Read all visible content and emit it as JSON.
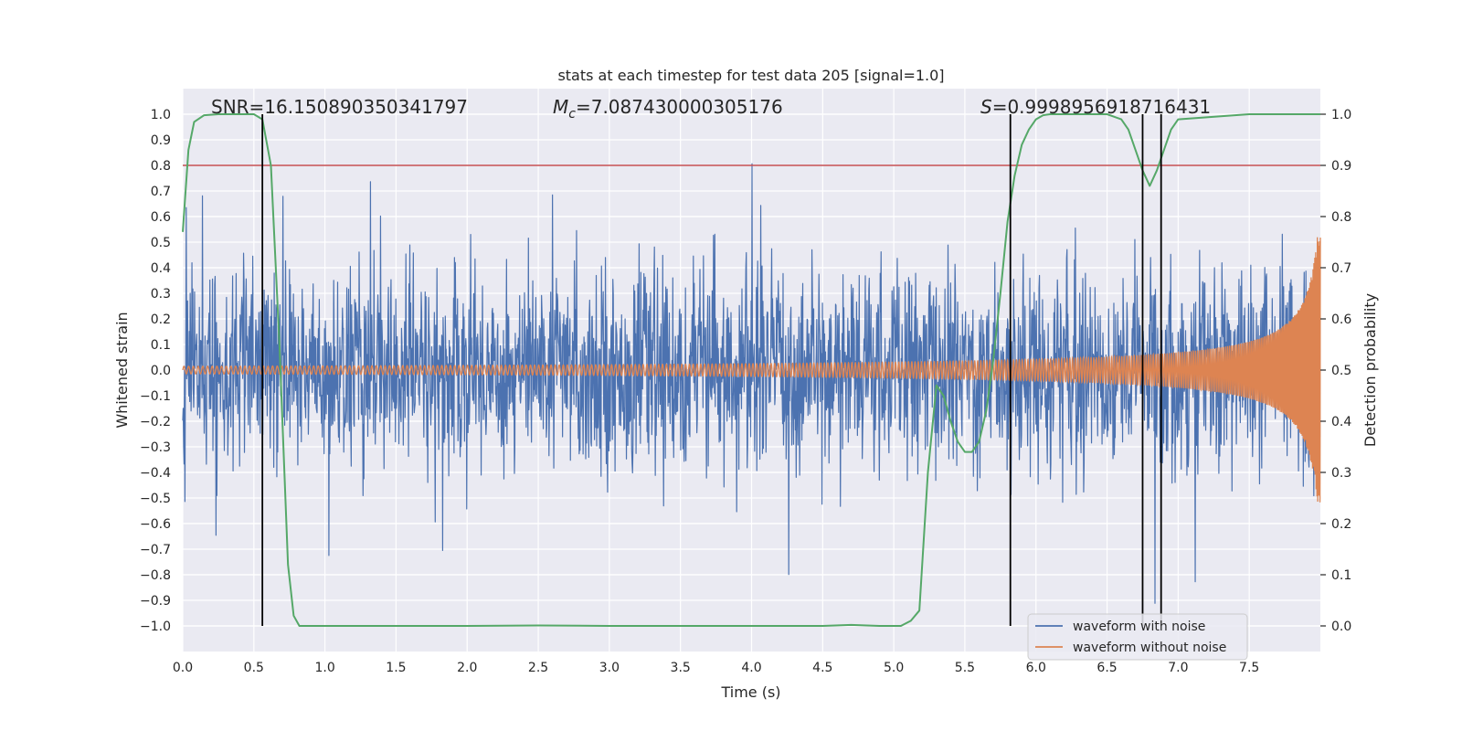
{
  "chart_data": {
    "type": "line",
    "title": "stats at each timestep for test data 205 [signal=1.0]",
    "xlabel": "Time (s)",
    "ylabel": "Whitened strain",
    "y2label": "Detection probability",
    "xlim": [
      0.0,
      8.0
    ],
    "ylim": [
      -1.1,
      1.1
    ],
    "y2lim": [
      -0.05,
      1.05
    ],
    "xticks": [
      "0.0",
      "0.5",
      "1.0",
      "1.5",
      "2.0",
      "2.5",
      "3.0",
      "3.5",
      "4.0",
      "4.5",
      "5.0",
      "5.5",
      "6.0",
      "6.5",
      "7.0",
      "7.5"
    ],
    "yticks": [
      "1.0",
      "0.9",
      "0.8",
      "0.7",
      "0.6",
      "0.5",
      "0.4",
      "0.3",
      "0.2",
      "0.1",
      "0.0",
      "−0.1",
      "−0.2",
      "−0.3",
      "−0.4",
      "−0.5",
      "−0.6",
      "−0.7",
      "−0.8",
      "−0.9",
      "−1.0"
    ],
    "y2ticks": [
      "1.0",
      "0.9",
      "0.8",
      "0.7",
      "0.6",
      "0.5",
      "0.4",
      "0.3",
      "0.2",
      "0.1",
      "0.0"
    ],
    "annotations": {
      "snr": "SNR=16.150890350341797",
      "mc_symbol": "M",
      "mc_sub": "c",
      "mc_value": "=7.087430000305176",
      "s_symbol": "S",
      "s_value": "=0.9998956918716431"
    },
    "threshold": {
      "y2": 0.9,
      "color": "#c44e52"
    },
    "vlines": [
      0.56,
      5.82,
      6.75,
      6.88
    ],
    "series": [
      {
        "name": "waveform with noise",
        "color": "#4c72b0",
        "sigma": 0.19,
        "peak": 0.9
      },
      {
        "name": "waveform without noise",
        "color": "#dd8452",
        "amp_start": 0.015,
        "amp_end": 0.52,
        "t_coal": 8.05
      },
      {
        "name": "detection probability",
        "color": "#55a868",
        "x": [
          0.0,
          0.04,
          0.08,
          0.15,
          0.25,
          0.4,
          0.5,
          0.56,
          0.62,
          0.68,
          0.74,
          0.78,
          0.82,
          1.0,
          2.0,
          2.5,
          3.0,
          4.0,
          4.5,
          4.7,
          4.9,
          5.05,
          5.12,
          5.18,
          5.24,
          5.3,
          5.35,
          5.4,
          5.45,
          5.5,
          5.55,
          5.6,
          5.65,
          5.7,
          5.75,
          5.8,
          5.85,
          5.9,
          5.95,
          6.0,
          6.05,
          6.1,
          6.3,
          6.5,
          6.6,
          6.65,
          6.7,
          6.75,
          6.8,
          6.85,
          6.9,
          6.95,
          7.0,
          7.5,
          8.0
        ],
        "y": [
          0.77,
          0.93,
          0.985,
          0.998,
          1.0,
          1.0,
          1.0,
          0.99,
          0.9,
          0.55,
          0.12,
          0.02,
          0.0,
          0.0,
          0.0,
          0.001,
          0.0,
          0.0,
          0.0,
          0.002,
          0.0,
          0.0,
          0.01,
          0.03,
          0.3,
          0.47,
          0.45,
          0.4,
          0.36,
          0.34,
          0.34,
          0.36,
          0.42,
          0.52,
          0.65,
          0.79,
          0.88,
          0.94,
          0.97,
          0.99,
          0.998,
          1.0,
          1.0,
          1.0,
          0.99,
          0.97,
          0.93,
          0.89,
          0.86,
          0.89,
          0.93,
          0.97,
          0.99,
          1.0,
          1.0
        ]
      }
    ],
    "legend": {
      "location": "lower-right"
    }
  }
}
